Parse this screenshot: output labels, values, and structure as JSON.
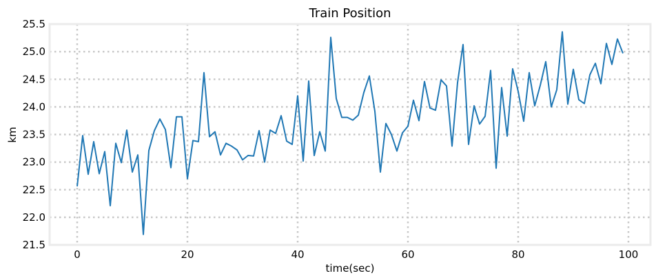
{
  "chart_data": {
    "type": "line",
    "title": "Train Position",
    "xlabel": "time(sec)",
    "ylabel": "km",
    "xlim": [
      -5,
      104
    ],
    "ylim": [
      21.5,
      25.5
    ],
    "xticks": [
      "0",
      "20",
      "40",
      "60",
      "80",
      "100"
    ],
    "yticks": [
      "21.5",
      "22.0",
      "22.5",
      "23.0",
      "23.5",
      "24.0",
      "24.5",
      "25.0",
      "25.5"
    ],
    "grid": true,
    "series": [
      {
        "color": "#1f77b4",
        "x": [
          0,
          1,
          2,
          3,
          4,
          5,
          6,
          7,
          8,
          9,
          10,
          11,
          12,
          13,
          14,
          15,
          16,
          17,
          18,
          19,
          20,
          21,
          22,
          23,
          24,
          25,
          26,
          27,
          28,
          29,
          30,
          31,
          32,
          33,
          34,
          35,
          36,
          37,
          38,
          39,
          40,
          41,
          42,
          43,
          44,
          45,
          46,
          47,
          48,
          49,
          50,
          51,
          52,
          53,
          54,
          55,
          56,
          57,
          58,
          59,
          60,
          61,
          62,
          63,
          64,
          65,
          66,
          67,
          68,
          69,
          70,
          71,
          72,
          73,
          74,
          75,
          76,
          77,
          78,
          79,
          80,
          81,
          82,
          83,
          84,
          85,
          86,
          87,
          88,
          89,
          90,
          91,
          92,
          93,
          94,
          95,
          96,
          97,
          98,
          99
        ],
        "values": [
          22.56,
          23.48,
          22.78,
          23.37,
          22.79,
          23.19,
          22.21,
          23.34,
          22.99,
          23.58,
          22.82,
          23.13,
          21.69,
          23.21,
          23.57,
          23.78,
          23.59,
          22.9,
          23.82,
          23.82,
          22.7,
          23.39,
          23.37,
          24.62,
          23.46,
          23.55,
          23.13,
          23.34,
          23.29,
          23.22,
          23.04,
          23.12,
          23.11,
          23.57,
          23.0,
          23.58,
          23.52,
          23.84,
          23.38,
          23.32,
          24.2,
          23.02,
          24.47,
          23.12,
          23.55,
          23.2,
          25.26,
          24.15,
          23.81,
          23.81,
          23.76,
          23.85,
          24.26,
          24.56,
          23.92,
          22.82,
          23.7,
          23.5,
          23.2,
          23.53,
          23.65,
          24.12,
          23.75,
          24.46,
          23.98,
          23.94,
          24.49,
          24.38,
          23.29,
          24.44,
          25.13,
          23.32,
          24.02,
          23.69,
          23.83,
          24.66,
          22.89,
          24.35,
          23.47,
          24.69,
          24.28,
          23.74,
          24.62,
          24.02,
          24.39,
          24.82,
          24.0,
          24.31,
          25.36,
          24.05,
          24.68,
          24.13,
          24.06,
          24.58,
          24.79,
          24.42,
          25.15,
          24.77,
          25.23,
          24.97
        ]
      }
    ]
  }
}
